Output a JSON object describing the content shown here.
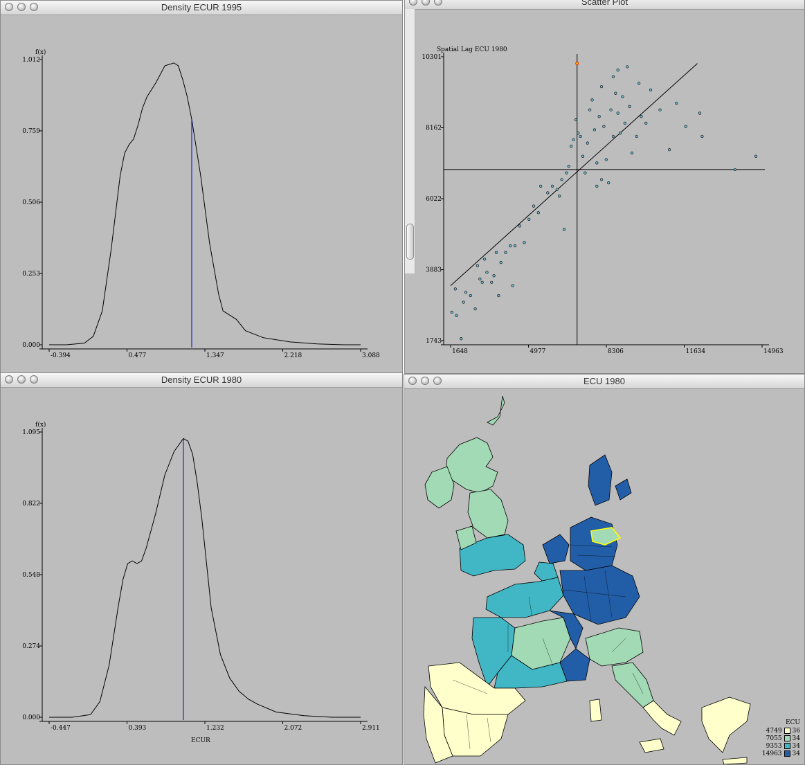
{
  "windows": {
    "density_1995": {
      "title": "Density ECUR 1995"
    },
    "scatter": {
      "title": "Scatter Plot"
    },
    "density_1980": {
      "title": "Density ECUR 1980"
    },
    "map": {
      "title": "ECU 1980"
    }
  },
  "map_legend": {
    "title": "ECU",
    "items": [
      {
        "break": "4749",
        "count": "36",
        "color": "#ffffcc"
      },
      {
        "break": "7055",
        "count": "34",
        "color": "#a1dab4"
      },
      {
        "break": "9353",
        "count": "34",
        "color": "#41b6c4"
      },
      {
        "break": "14963",
        "count": "34",
        "color": "#225ea8"
      }
    ]
  },
  "chart_data": [
    {
      "type": "line",
      "ylabel": "f(x)",
      "xticks": [
        "-0.394",
        "0.477",
        "1.347",
        "2.218",
        "3.088"
      ],
      "yticks": [
        "1.012",
        "0.759",
        "0.506",
        "0.253",
        "0.000"
      ],
      "xlim": [
        -0.394,
        3.088
      ],
      "ylim": [
        0,
        1.012
      ],
      "marker_x": 1.2,
      "x": [
        -0.394,
        -0.2,
        0.0,
        0.1,
        0.2,
        0.3,
        0.4,
        0.45,
        0.5,
        0.55,
        0.6,
        0.65,
        0.7,
        0.8,
        0.9,
        1.0,
        1.05,
        1.1,
        1.15,
        1.2,
        1.3,
        1.4,
        1.5,
        1.55,
        1.6,
        1.7,
        1.8,
        2.0,
        2.3,
        2.6,
        2.9,
        3.088
      ],
      "y": [
        0.0,
        0.0,
        0.006,
        0.03,
        0.12,
        0.34,
        0.6,
        0.68,
        0.71,
        0.73,
        0.78,
        0.84,
        0.88,
        0.93,
        0.99,
        1.0,
        0.99,
        0.94,
        0.88,
        0.8,
        0.6,
        0.36,
        0.18,
        0.12,
        0.11,
        0.09,
        0.05,
        0.025,
        0.01,
        0.003,
        0.0,
        0.0
      ]
    },
    {
      "type": "scatter",
      "ylabel": "Spatial Lag ECU 1980",
      "xticks": [
        "1648",
        "4977",
        "8306",
        "11634",
        "14963"
      ],
      "yticks": [
        "10301",
        "8162",
        "6022",
        "3883",
        "1743"
      ],
      "xlim": [
        1648,
        14963
      ],
      "ylim": [
        1743,
        10301
      ],
      "mean_x": 7055,
      "mean_y": 6900,
      "regression": {
        "x": [
          1648,
          12200
        ],
        "y": [
          3400,
          10100
        ]
      },
      "highlight": {
        "x": 7055,
        "y": 10100
      },
      "points": [
        [
          1700,
          2600
        ],
        [
          1900,
          2500
        ],
        [
          1850,
          3300
        ],
        [
          2300,
          3200
        ],
        [
          2500,
          3100
        ],
        [
          2700,
          2700
        ],
        [
          2900,
          3600
        ],
        [
          2800,
          4000
        ],
        [
          3000,
          3500
        ],
        [
          3200,
          3800
        ],
        [
          3100,
          4200
        ],
        [
          3400,
          3500
        ],
        [
          3500,
          3700
        ],
        [
          3600,
          4400
        ],
        [
          3800,
          4100
        ],
        [
          4000,
          4400
        ],
        [
          4200,
          4600
        ],
        [
          4300,
          3400
        ],
        [
          4400,
          4600
        ],
        [
          4600,
          5200
        ],
        [
          4800,
          4700
        ],
        [
          5000,
          5400
        ],
        [
          5200,
          5800
        ],
        [
          5400,
          5600
        ],
        [
          5800,
          6200
        ],
        [
          6000,
          6400
        ],
        [
          6200,
          6300
        ],
        [
          6400,
          6600
        ],
        [
          6600,
          6800
        ],
        [
          6700,
          7000
        ],
        [
          6800,
          7600
        ],
        [
          6900,
          7800
        ],
        [
          7000,
          8400
        ],
        [
          7100,
          8000
        ],
        [
          7200,
          7900
        ],
        [
          7300,
          7300
        ],
        [
          7500,
          7700
        ],
        [
          7600,
          8700
        ],
        [
          7700,
          9000
        ],
        [
          7800,
          8100
        ],
        [
          7900,
          7100
        ],
        [
          8000,
          8500
        ],
        [
          8100,
          9400
        ],
        [
          8200,
          8200
        ],
        [
          8300,
          7200
        ],
        [
          8400,
          6500
        ],
        [
          8500,
          8700
        ],
        [
          8600,
          7900
        ],
        [
          8700,
          9200
        ],
        [
          8800,
          8600
        ],
        [
          8900,
          8000
        ],
        [
          9000,
          9100
        ],
        [
          9100,
          8300
        ],
        [
          9300,
          8800
        ],
        [
          9400,
          7400
        ],
        [
          9600,
          7900
        ],
        [
          9800,
          8500
        ],
        [
          10000,
          8300
        ],
        [
          10200,
          9300
        ],
        [
          10600,
          8700
        ],
        [
          11000,
          7500
        ],
        [
          11300,
          8900
        ],
        [
          11700,
          8200
        ],
        [
          12300,
          8600
        ],
        [
          12400,
          7900
        ],
        [
          13800,
          6900
        ],
        [
          14700,
          7300
        ],
        [
          3700,
          3100
        ],
        [
          5500,
          6400
        ],
        [
          6300,
          6100
        ],
        [
          7400,
          6800
        ],
        [
          8800,
          9900
        ],
        [
          9200,
          10000
        ],
        [
          9700,
          9500
        ],
        [
          6500,
          5100
        ],
        [
          7900,
          6400
        ],
        [
          8100,
          6600
        ],
        [
          8600,
          9700
        ],
        [
          2100,
          1800
        ],
        [
          2200,
          2900
        ]
      ]
    },
    {
      "type": "line",
      "ylabel": "f(x)",
      "xlabel": "ECUR",
      "xticks": [
        "-0.447",
        "0.393",
        "1.232",
        "2.072",
        "2.911"
      ],
      "yticks": [
        "1.095",
        "0.822",
        "0.548",
        "0.274",
        "0.000"
      ],
      "xlim": [
        -0.447,
        2.911
      ],
      "ylim": [
        0,
        1.095
      ],
      "marker_x": 1.0,
      "x": [
        -0.447,
        -0.2,
        0.0,
        0.1,
        0.2,
        0.3,
        0.35,
        0.4,
        0.45,
        0.5,
        0.55,
        0.6,
        0.7,
        0.8,
        0.9,
        1.0,
        1.05,
        1.1,
        1.15,
        1.2,
        1.3,
        1.4,
        1.5,
        1.6,
        1.7,
        1.8,
        2.0,
        2.3,
        2.6,
        2.911
      ],
      "y": [
        0.0,
        0.0,
        0.01,
        0.06,
        0.2,
        0.43,
        0.53,
        0.59,
        0.6,
        0.59,
        0.6,
        0.65,
        0.78,
        0.93,
        1.02,
        1.07,
        1.06,
        1.01,
        0.9,
        0.76,
        0.42,
        0.24,
        0.15,
        0.1,
        0.07,
        0.05,
        0.02,
        0.006,
        0.0,
        0.0
      ]
    }
  ]
}
